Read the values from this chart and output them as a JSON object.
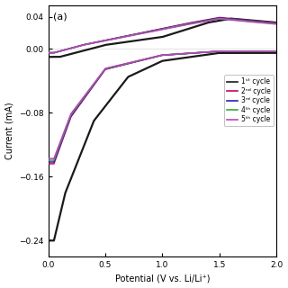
{
  "xlabel": "Potential (V vs. Li/Li⁺)",
  "ylabel": "Current (mA)",
  "xlim": [
    0.0,
    2.0
  ],
  "ylim": [
    -0.26,
    0.055
  ],
  "yticks": [
    0.04,
    0.0,
    -0.08,
    -0.16,
    -0.24
  ],
  "xticks": [
    0.0,
    0.5,
    1.0,
    1.5,
    2.0
  ],
  "legend_labels": [
    "1ˢᵗ cycle",
    "2ⁿᵈ cycle",
    "3ʳᵈ cycle",
    "4ᵗʰ cycle",
    "5ᵗʰ cycle"
  ],
  "colors": [
    "#1a1a1a",
    "#cc0066",
    "#2222bb",
    "#33aa33",
    "#bb44bb"
  ],
  "panel_label": "(a)",
  "bg_color": "#ffffff"
}
